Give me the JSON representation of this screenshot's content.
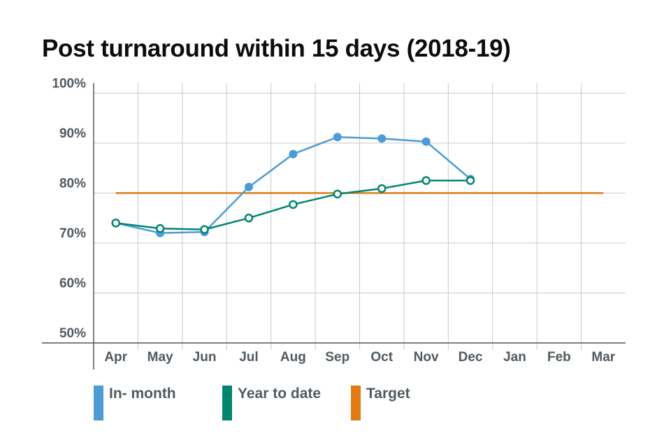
{
  "chart_data": {
    "type": "line",
    "title": "Post turnaround within 15 days (2018-19)",
    "categories": [
      "Apr",
      "May",
      "Jun",
      "Jul",
      "Aug",
      "Sep",
      "Oct",
      "Nov",
      "Dec",
      "Jan",
      "Feb",
      "Mar"
    ],
    "y_tick_labels": [
      "100%",
      "90%",
      "80%",
      "70%",
      "60%",
      "50%"
    ],
    "y_ticks": [
      100,
      90,
      80,
      70,
      60,
      50
    ],
    "ylim": [
      50,
      100
    ],
    "grid": true,
    "legend_position": "bottom",
    "series": [
      {
        "name": "In- month",
        "color": "#4c9bd6",
        "marker": "filled",
        "values": [
          74.0,
          72.0,
          72.2,
          81.2,
          87.8,
          91.2,
          90.9,
          90.3,
          82.8,
          null,
          null,
          null
        ]
      },
      {
        "name": "Year to date",
        "color": "#00856f",
        "marker": "hollow",
        "values": [
          74.0,
          72.9,
          72.7,
          75.0,
          77.7,
          79.8,
          80.9,
          82.5,
          82.5,
          null,
          null,
          null
        ]
      },
      {
        "name": "Target",
        "color": "#e07b14",
        "marker": "none",
        "values": [
          80,
          80,
          80,
          80,
          80,
          80,
          80,
          80,
          80,
          80,
          80,
          80
        ]
      }
    ]
  }
}
